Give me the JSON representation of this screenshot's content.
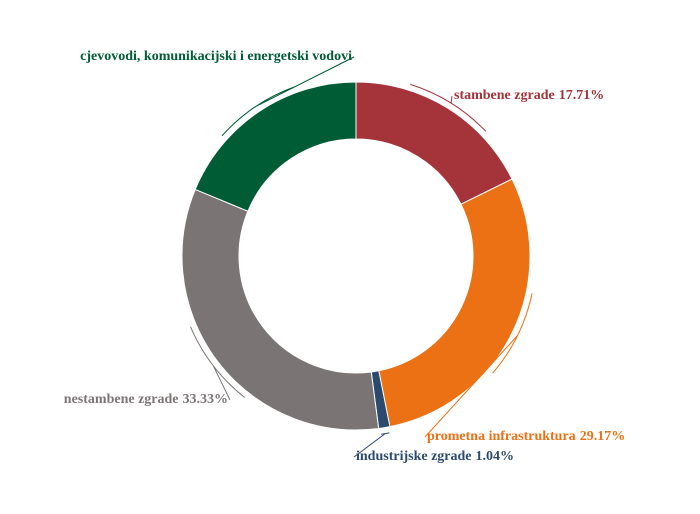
{
  "chart_data": {
    "type": "donut",
    "categories": [
      "stambene zgrade",
      "prometna infrastruktura",
      "industrijske zgrade",
      "nestambene zgrade",
      "cjevovodi, komunikacijski i energetski vodovi"
    ],
    "values": [
      17.71,
      29.17,
      1.04,
      33.33,
      18.75
    ],
    "value_labels": [
      "17.71%",
      "29.17%",
      "1.04%",
      "33.33%",
      null
    ],
    "colors": [
      "#a5333a",
      "#ec7014",
      "#2c4a6e",
      "#7a7574",
      "#005c35"
    ]
  }
}
